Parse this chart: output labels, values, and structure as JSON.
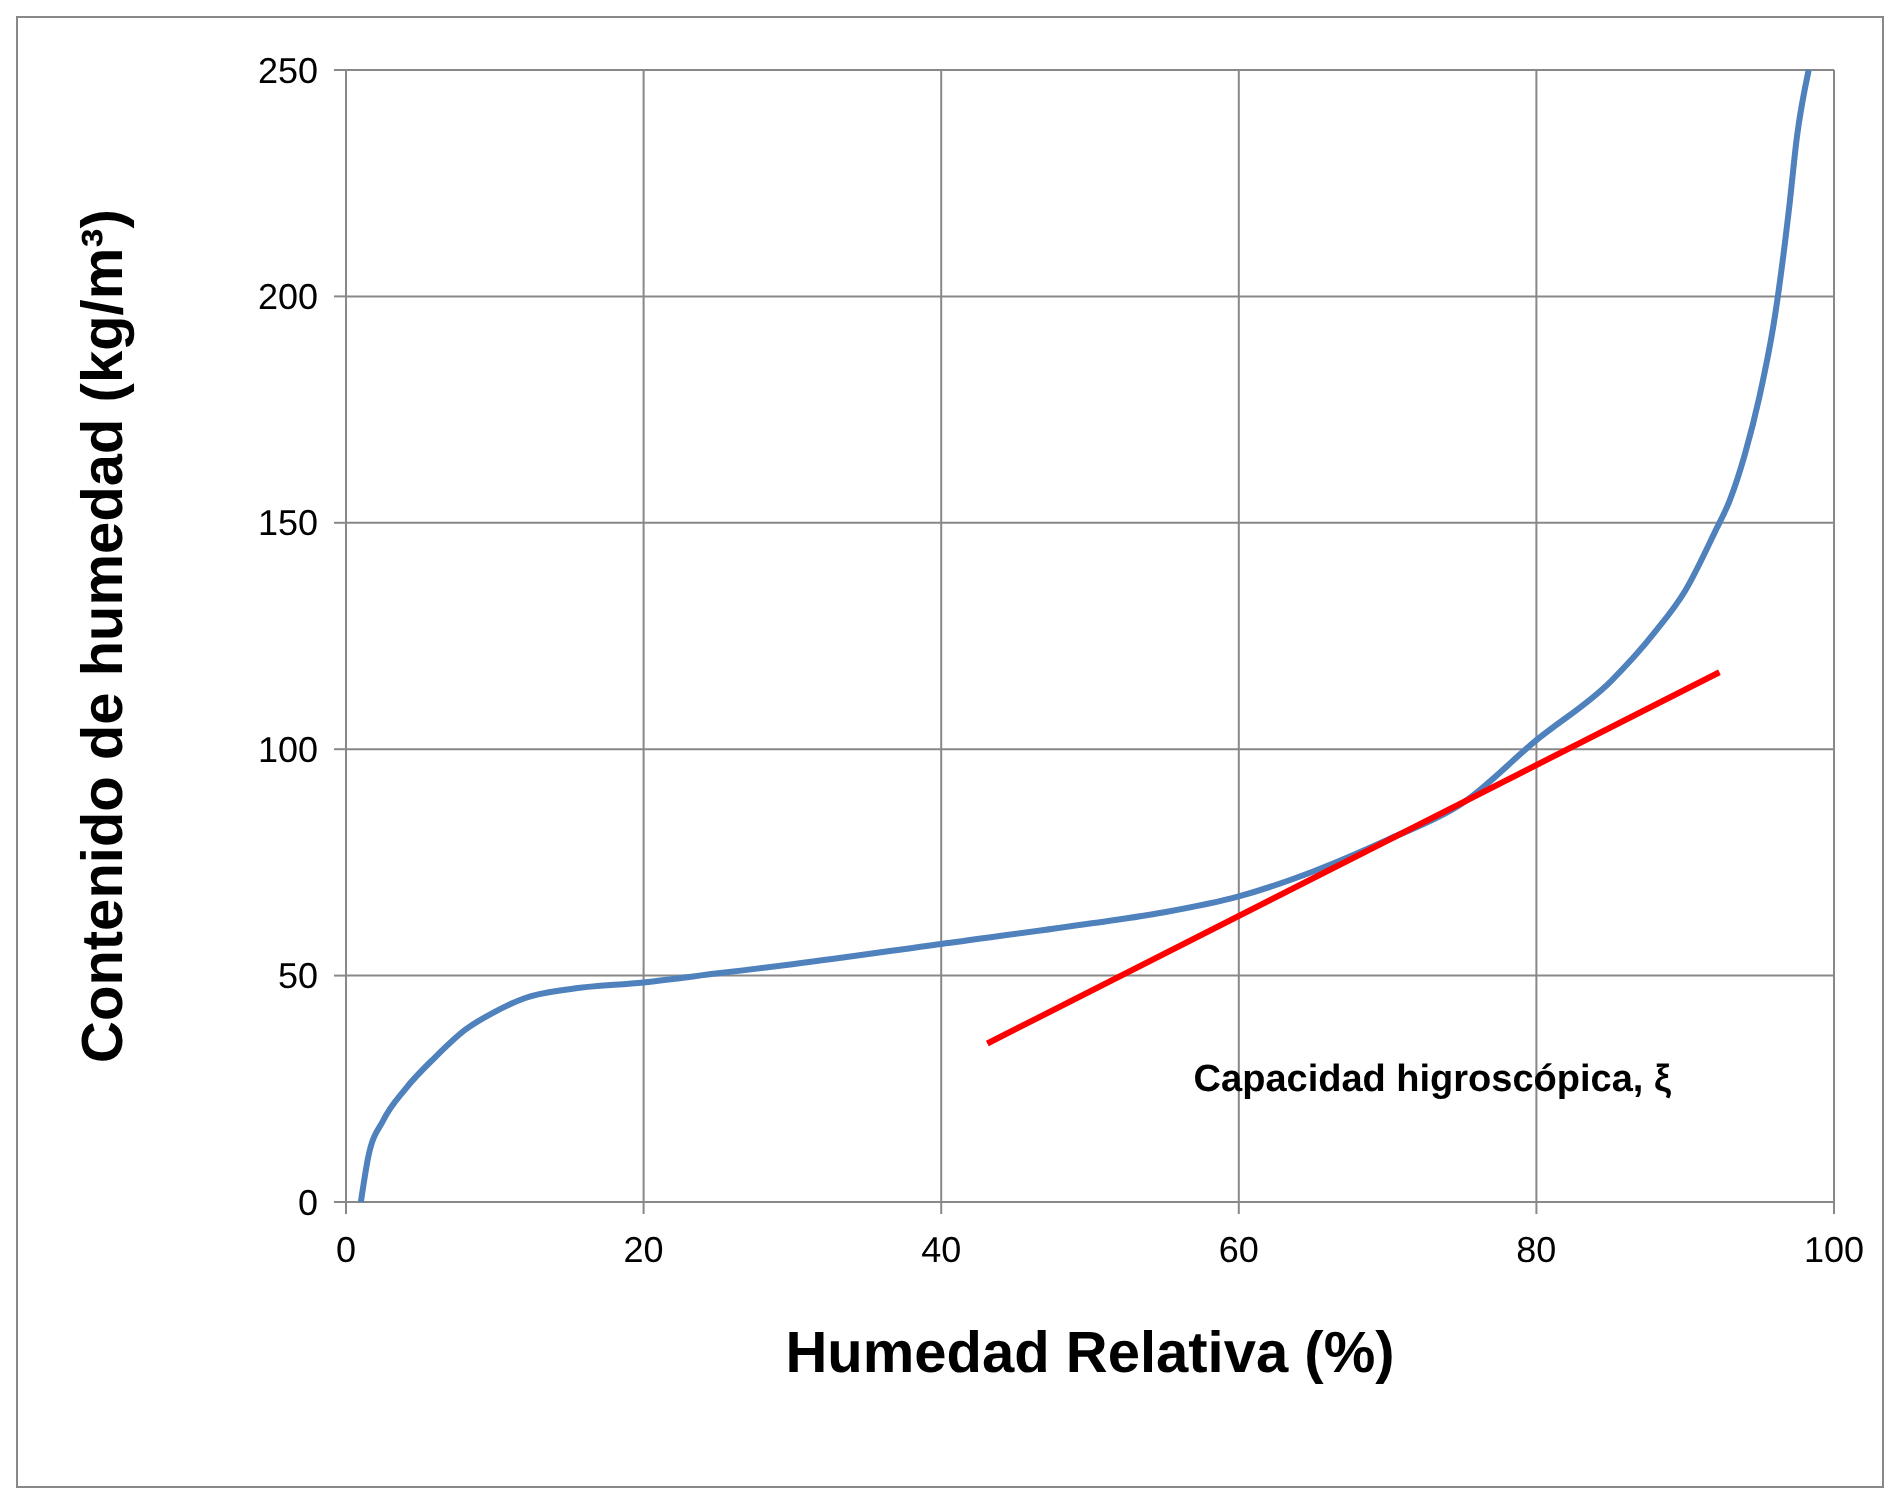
{
  "chart_data": {
    "type": "line",
    "xlabel": "Humedad Relativa (%)",
    "ylabel": "Contenido de humedad (kg/m³)",
    "xlim": [
      0,
      100
    ],
    "xticks": [
      0,
      20,
      40,
      60,
      80,
      100
    ],
    "ylim": [
      0,
      250
    ],
    "yticks": [
      0,
      50,
      100,
      150,
      200,
      250
    ],
    "grid": true,
    "marker": "none",
    "line_style": "solid",
    "series": [
      {
        "color": "#4f81bd",
        "x": [
          1,
          1.5,
          2.5,
          4,
          6,
          8,
          10,
          12,
          15,
          20,
          25,
          30,
          40,
          50,
          55,
          60,
          65,
          70,
          75,
          80,
          85,
          88,
          90,
          92,
          93,
          94,
          95,
          96,
          97,
          97.5,
          98.3
        ],
        "values": [
          0,
          10,
          18,
          25,
          32,
          38,
          42,
          45,
          47,
          48.5,
          50.5,
          52.5,
          57,
          61.5,
          64,
          67.5,
          73,
          80,
          88,
          102,
          115,
          126,
          135,
          148,
          155,
          165,
          178,
          195,
          220,
          235,
          250
        ]
      },
      {
        "color": "#ff0000",
        "x": [
          43.1,
          92.3
        ],
        "values": [
          35,
          117
        ]
      }
    ],
    "annotations": [
      "Capacidad higroscópica, ξ"
    ]
  }
}
